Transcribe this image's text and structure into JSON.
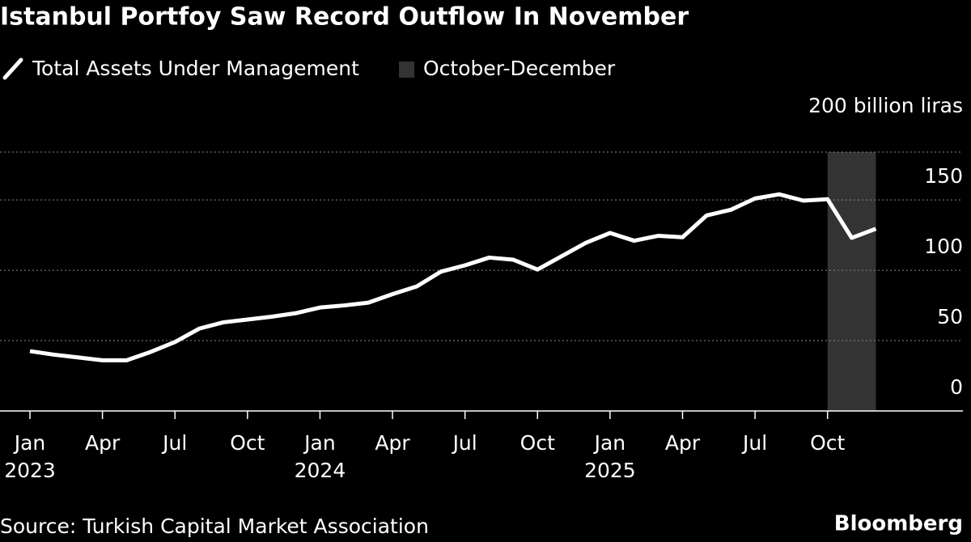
{
  "chart_data": {
    "type": "line",
    "title": "Istanbul Portfoy Saw Record Outflow In November",
    "source": "Source: Turkish Capital Market Association",
    "brand": "Bloomberg",
    "x": [
      "2023-01",
      "2023-02",
      "2023-03",
      "2023-04",
      "2023-05",
      "2023-06",
      "2023-07",
      "2023-08",
      "2023-09",
      "2023-10",
      "2023-11",
      "2023-12",
      "2024-01",
      "2024-02",
      "2024-03",
      "2024-04",
      "2024-05",
      "2024-06",
      "2024-07",
      "2024-08",
      "2024-09",
      "2024-10",
      "2024-11",
      "2024-12",
      "2025-01",
      "2025-02",
      "2025-03",
      "2025-04",
      "2025-05",
      "2025-06",
      "2025-07",
      "2025-08",
      "2025-09",
      "2025-10",
      "2025-11",
      "2025-12"
    ],
    "series": [
      {
        "name": "Total Assets Under Management",
        "color": "#ffffff",
        "values": [
          42.5,
          40,
          38,
          36,
          36,
          42,
          49,
          58.5,
          63,
          65,
          67,
          69.5,
          73.5,
          75,
          77,
          83,
          88.5,
          99,
          103.5,
          109,
          107.5,
          100.5,
          110,
          119.5,
          126.5,
          121,
          124.5,
          123.5,
          139,
          143,
          151,
          154,
          149.5,
          150.5,
          123,
          129.5
        ]
      }
    ],
    "span": {
      "name": "October-December",
      "from": "2025-10",
      "to": "2025-12",
      "color": "#333333"
    },
    "ylim": [
      0,
      184
    ],
    "yticks": [
      0,
      50,
      100,
      150,
      {
        "value": 200,
        "label": "200 billion liras"
      }
    ],
    "xticks": [
      {
        "value": "2023-01",
        "label": "Jan"
      },
      {
        "value": "2023-04",
        "label": "Apr"
      },
      {
        "value": "2023-07",
        "label": "Jul"
      },
      {
        "value": "2023-10",
        "label": "Oct"
      },
      {
        "value": "2024-01",
        "label": "Jan"
      },
      {
        "value": "2024-04",
        "label": "Apr"
      },
      {
        "value": "2024-07",
        "label": "Jul"
      },
      {
        "value": "2024-10",
        "label": "Oct"
      },
      {
        "value": "2025-01",
        "label": "Jan"
      },
      {
        "value": "2025-04",
        "label": "Apr"
      },
      {
        "value": "2025-07",
        "label": "Jul"
      },
      {
        "value": "2025-10",
        "label": "Oct"
      }
    ],
    "xtick_years": [
      {
        "value": "2023-01",
        "label": "2023"
      },
      {
        "value": "2024-01",
        "label": "2024"
      },
      {
        "value": "2025-01",
        "label": "2025"
      }
    ],
    "grid": true,
    "y_axis_side": "right"
  }
}
